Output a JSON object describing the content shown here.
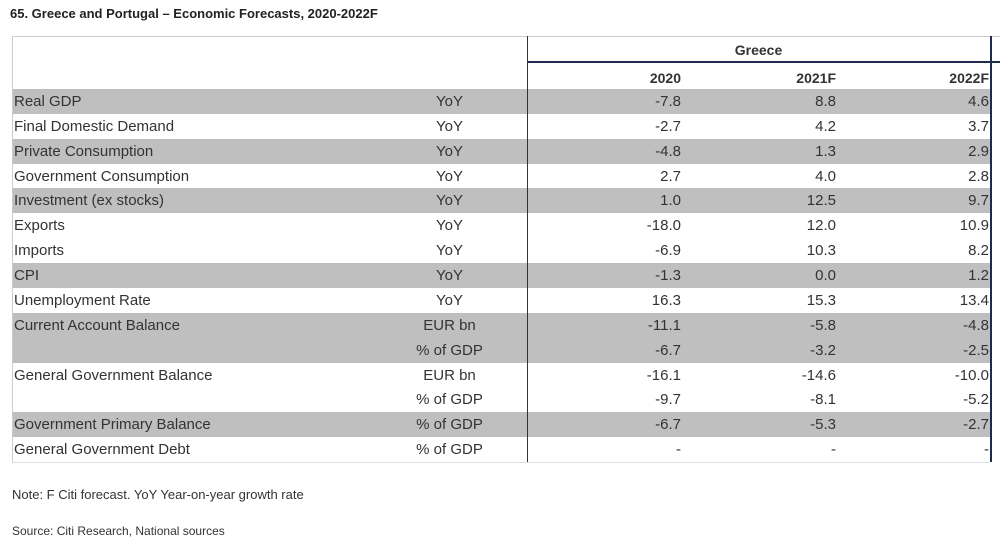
{
  "title": "65. Greece and Portugal – Economic Forecasts, 2020-2022F",
  "table": {
    "group": "Greece",
    "columns": [
      "2020",
      "2021F",
      "2022F"
    ],
    "rows": [
      [
        "Real GDP",
        "YoY",
        "-7.8",
        "8.8",
        "4.6"
      ],
      [
        "Final Domestic Demand",
        "YoY",
        "-2.7",
        "4.2",
        "3.7"
      ],
      [
        "Private Consumption",
        "YoY",
        "-4.8",
        "1.3",
        "2.9"
      ],
      [
        "Government Consumption",
        "YoY",
        "2.7",
        "4.0",
        "2.8"
      ],
      [
        "Investment (ex stocks)",
        "YoY",
        "1.0",
        "12.5",
        "9.7"
      ],
      [
        "Exports",
        "YoY",
        "-18.0",
        "12.0",
        "10.9"
      ],
      [
        "Imports",
        "YoY",
        "-6.9",
        "10.3",
        "8.2"
      ],
      [
        "CPI",
        "YoY",
        "-1.3",
        "0.0",
        "1.2"
      ],
      [
        "Unemployment Rate",
        "YoY",
        "16.3",
        "15.3",
        "13.4"
      ],
      [
        "Current Account Balance",
        "EUR bn",
        "-11.1",
        "-5.8",
        "-4.8"
      ],
      [
        "",
        "% of GDP",
        "-6.7",
        "-3.2",
        "-2.5"
      ],
      [
        "General Government Balance",
        "EUR bn",
        "-16.1",
        "-14.6",
        "-10.0"
      ],
      [
        "",
        "% of GDP",
        "-9.7",
        "-8.1",
        "-5.2"
      ],
      [
        "Government Primary Balance",
        "% of GDP",
        "-6.7",
        "-5.3",
        "-2.7"
      ],
      [
        "General Government Debt",
        "% of GDP",
        "-",
        "-",
        "-"
      ]
    ]
  },
  "note": "Note: F Citi forecast. YoY Year-on-year growth rate",
  "source": "Source: Citi Research, National sources"
}
